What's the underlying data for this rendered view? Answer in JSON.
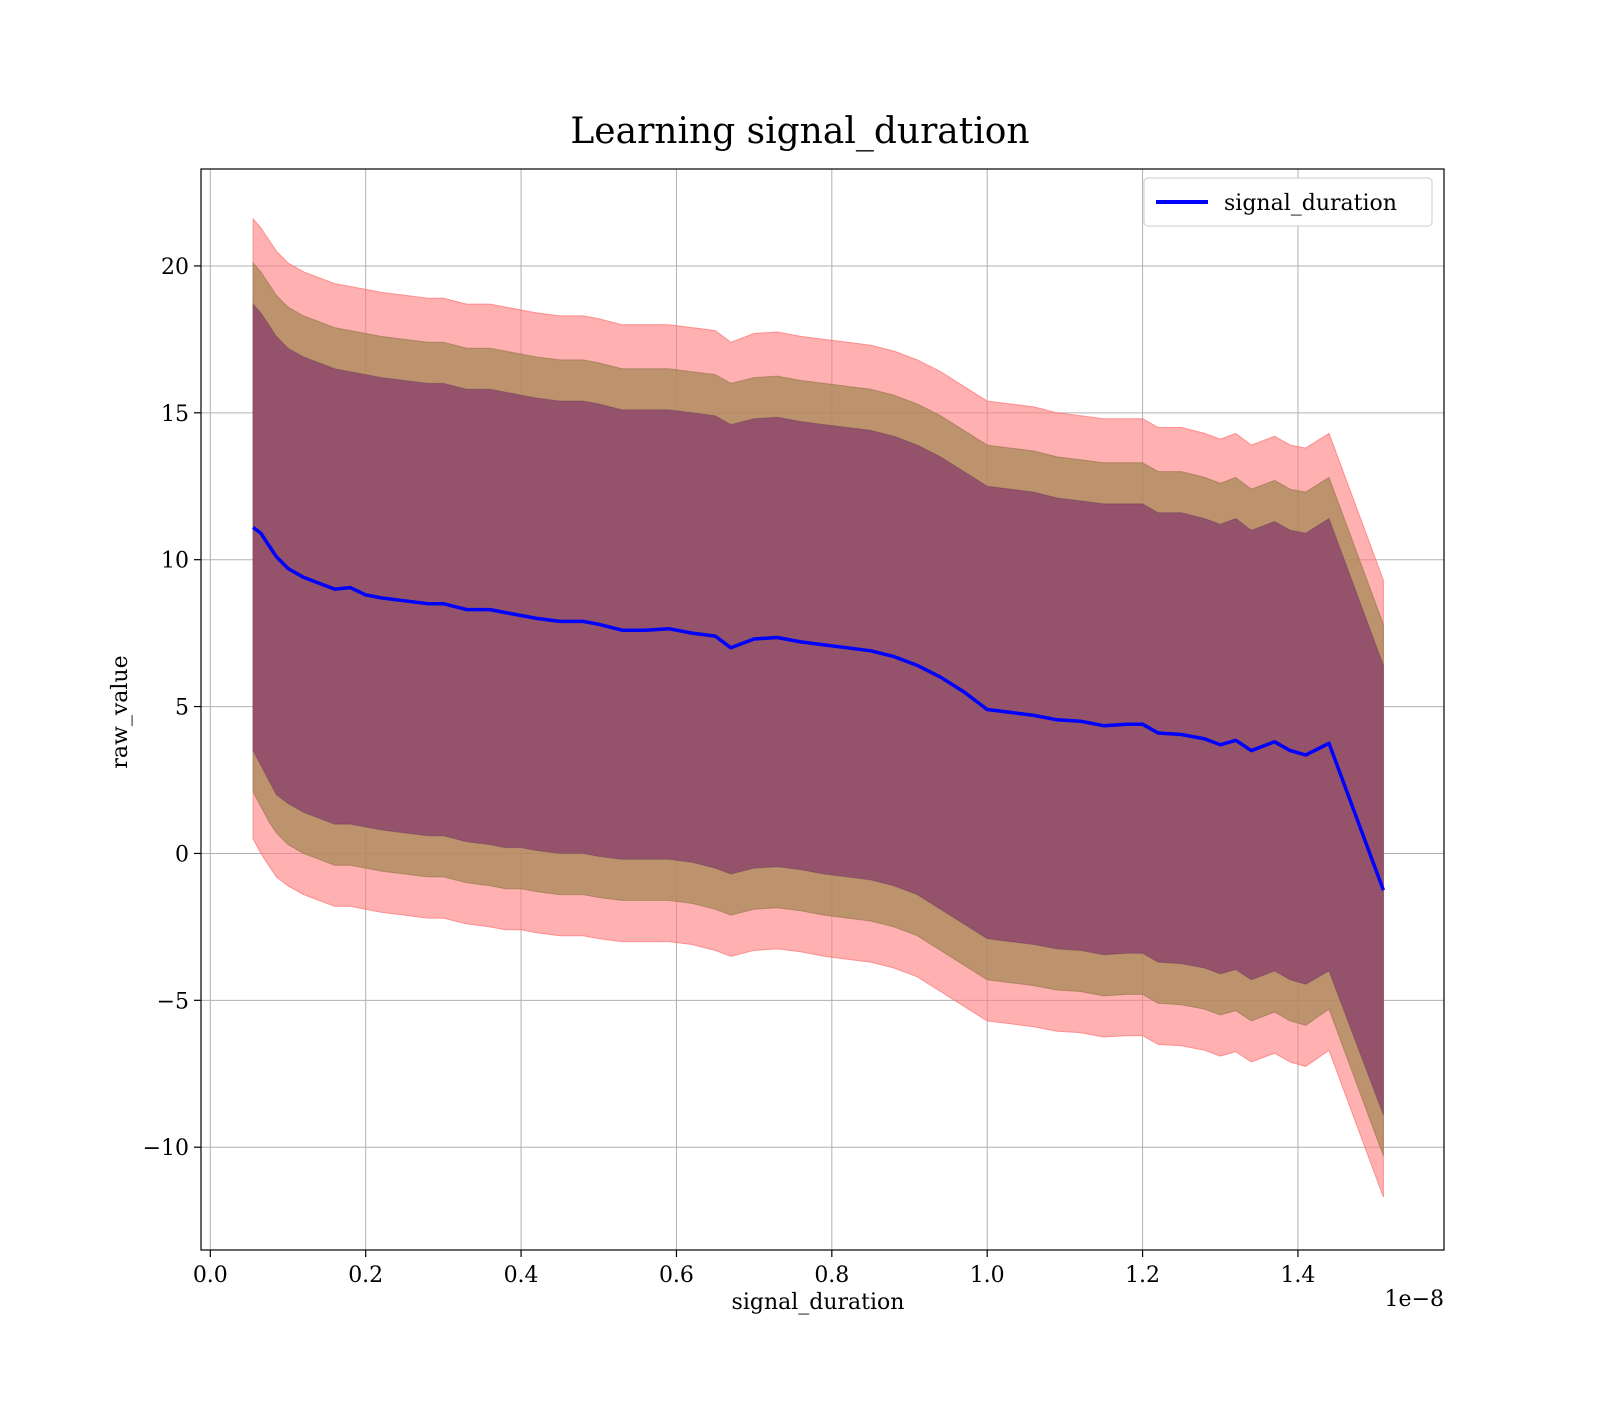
{
  "chart_data": {
    "type": "line",
    "title": "Learning signal_duration",
    "xlabel": "signal_duration",
    "ylabel": "raw_value",
    "x_offset_label": "1e−8",
    "xlim": [
      -0.012,
      1.588
    ],
    "ylim": [
      -13.5,
      23.3
    ],
    "x_ticks": [
      0.0,
      0.2,
      0.4,
      0.6,
      0.8,
      1.0,
      1.2,
      1.4
    ],
    "x_tick_labels": [
      "0.0",
      "0.2",
      "0.4",
      "0.6",
      "0.8",
      "1.0",
      "1.2",
      "1.4"
    ],
    "y_ticks": [
      -10,
      -5,
      0,
      5,
      10,
      15,
      20
    ],
    "y_tick_labels": [
      "−10",
      "−5",
      "0",
      "5",
      "10",
      "15",
      "20"
    ],
    "grid": true,
    "legend": {
      "position": "top-right",
      "entries": [
        "signal_duration"
      ]
    },
    "colors": {
      "line": "#0000ff",
      "band_outer": "#ff8080",
      "band_middle": "#a58a55",
      "band_inner": "#8e4a6a"
    },
    "series": [
      {
        "name": "signal_duration",
        "x": [
          0.055,
          0.065,
          0.075,
          0.085,
          0.1,
          0.12,
          0.14,
          0.16,
          0.18,
          0.2,
          0.22,
          0.25,
          0.28,
          0.3,
          0.33,
          0.36,
          0.38,
          0.4,
          0.42,
          0.45,
          0.48,
          0.5,
          0.53,
          0.56,
          0.59,
          0.62,
          0.65,
          0.67,
          0.7,
          0.73,
          0.76,
          0.79,
          0.82,
          0.85,
          0.88,
          0.91,
          0.94,
          0.97,
          1.0,
          1.03,
          1.06,
          1.09,
          1.12,
          1.15,
          1.18,
          1.2,
          1.22,
          1.25,
          1.28,
          1.3,
          1.32,
          1.34,
          1.37,
          1.39,
          1.41,
          1.44,
          1.51
        ],
        "y": [
          11.1,
          10.9,
          10.5,
          10.1,
          9.7,
          9.4,
          9.2,
          9.0,
          9.05,
          8.8,
          8.7,
          8.6,
          8.5,
          8.5,
          8.3,
          8.3,
          8.2,
          8.1,
          8.0,
          7.9,
          7.9,
          7.8,
          7.6,
          7.6,
          7.65,
          7.5,
          7.4,
          7.0,
          7.3,
          7.35,
          7.2,
          7.1,
          7.0,
          6.9,
          6.7,
          6.4,
          6.0,
          5.5,
          4.9,
          4.8,
          4.7,
          4.55,
          4.5,
          4.35,
          4.4,
          4.4,
          4.1,
          4.05,
          3.9,
          3.7,
          3.85,
          3.5,
          3.8,
          3.5,
          3.35,
          3.75,
          -1.25
        ],
        "lower_inner": [
          3.5,
          3.0,
          2.5,
          2.0,
          1.7,
          1.4,
          1.2,
          1.0,
          1.0,
          0.9,
          0.8,
          0.7,
          0.6,
          0.6,
          0.4,
          0.3,
          0.2,
          0.2,
          0.1,
          0.0,
          0.0,
          -0.1,
          -0.2,
          -0.2,
          -0.2,
          -0.3,
          -0.5,
          -0.7,
          -0.5,
          -0.45,
          -0.55,
          -0.7,
          -0.8,
          -0.9,
          -1.1,
          -1.4,
          -1.9,
          -2.4,
          -2.9,
          -3.0,
          -3.1,
          -3.25,
          -3.3,
          -3.45,
          -3.4,
          -3.4,
          -3.7,
          -3.75,
          -3.9,
          -4.1,
          -3.95,
          -4.3,
          -4.0,
          -4.3,
          -4.45,
          -4.0,
          -8.9
        ],
        "upper_inner": [
          18.7,
          18.4,
          18.0,
          17.6,
          17.2,
          16.9,
          16.7,
          16.5,
          16.4,
          16.3,
          16.2,
          16.1,
          16.0,
          16.0,
          15.8,
          15.8,
          15.7,
          15.6,
          15.5,
          15.4,
          15.4,
          15.3,
          15.1,
          15.1,
          15.1,
          15.0,
          14.9,
          14.6,
          14.8,
          14.85,
          14.7,
          14.6,
          14.5,
          14.4,
          14.2,
          13.9,
          13.5,
          13.0,
          12.5,
          12.4,
          12.3,
          12.1,
          12.0,
          11.9,
          11.9,
          11.9,
          11.6,
          11.6,
          11.4,
          11.2,
          11.4,
          11.0,
          11.3,
          11.0,
          10.9,
          11.4,
          6.4
        ],
        "lower_middle": [
          2.1,
          1.6,
          1.1,
          0.7,
          0.3,
          0.0,
          -0.2,
          -0.4,
          -0.4,
          -0.5,
          -0.6,
          -0.7,
          -0.8,
          -0.8,
          -1.0,
          -1.1,
          -1.2,
          -1.2,
          -1.3,
          -1.4,
          -1.4,
          -1.5,
          -1.6,
          -1.6,
          -1.6,
          -1.7,
          -1.9,
          -2.1,
          -1.9,
          -1.85,
          -1.95,
          -2.1,
          -2.2,
          -2.3,
          -2.5,
          -2.8,
          -3.3,
          -3.8,
          -4.3,
          -4.4,
          -4.5,
          -4.65,
          -4.7,
          -4.85,
          -4.8,
          -4.8,
          -5.1,
          -5.15,
          -5.3,
          -5.5,
          -5.35,
          -5.7,
          -5.4,
          -5.7,
          -5.85,
          -5.3,
          -10.3
        ],
        "upper_middle": [
          20.1,
          19.8,
          19.4,
          19.0,
          18.6,
          18.3,
          18.1,
          17.9,
          17.8,
          17.7,
          17.6,
          17.5,
          17.4,
          17.4,
          17.2,
          17.2,
          17.1,
          17.0,
          16.9,
          16.8,
          16.8,
          16.7,
          16.5,
          16.5,
          16.5,
          16.4,
          16.3,
          16.0,
          16.2,
          16.25,
          16.1,
          16.0,
          15.9,
          15.8,
          15.6,
          15.3,
          14.9,
          14.4,
          13.9,
          13.8,
          13.7,
          13.5,
          13.4,
          13.3,
          13.3,
          13.3,
          13.0,
          13.0,
          12.8,
          12.6,
          12.8,
          12.4,
          12.7,
          12.4,
          12.3,
          12.8,
          7.8
        ],
        "lower_outer": [
          0.5,
          0.0,
          -0.4,
          -0.8,
          -1.1,
          -1.4,
          -1.6,
          -1.8,
          -1.8,
          -1.9,
          -2.0,
          -2.1,
          -2.2,
          -2.2,
          -2.4,
          -2.5,
          -2.6,
          -2.6,
          -2.7,
          -2.8,
          -2.8,
          -2.9,
          -3.0,
          -3.0,
          -3.0,
          -3.1,
          -3.3,
          -3.5,
          -3.3,
          -3.25,
          -3.35,
          -3.5,
          -3.6,
          -3.7,
          -3.9,
          -4.2,
          -4.7,
          -5.2,
          -5.7,
          -5.8,
          -5.9,
          -6.05,
          -6.1,
          -6.25,
          -6.2,
          -6.2,
          -6.5,
          -6.55,
          -6.7,
          -6.9,
          -6.75,
          -7.1,
          -6.8,
          -7.1,
          -7.25,
          -6.7,
          -11.7
        ],
        "upper_outer": [
          21.6,
          21.3,
          20.9,
          20.5,
          20.1,
          19.8,
          19.6,
          19.4,
          19.3,
          19.2,
          19.1,
          19.0,
          18.9,
          18.9,
          18.7,
          18.7,
          18.6,
          18.5,
          18.4,
          18.3,
          18.3,
          18.2,
          18.0,
          18.0,
          18.0,
          17.9,
          17.8,
          17.4,
          17.7,
          17.75,
          17.6,
          17.5,
          17.4,
          17.3,
          17.1,
          16.8,
          16.4,
          15.9,
          15.4,
          15.3,
          15.2,
          15.0,
          14.9,
          14.8,
          14.8,
          14.8,
          14.5,
          14.5,
          14.3,
          14.1,
          14.3,
          13.9,
          14.2,
          13.9,
          13.8,
          14.3,
          9.3
        ]
      }
    ]
  }
}
